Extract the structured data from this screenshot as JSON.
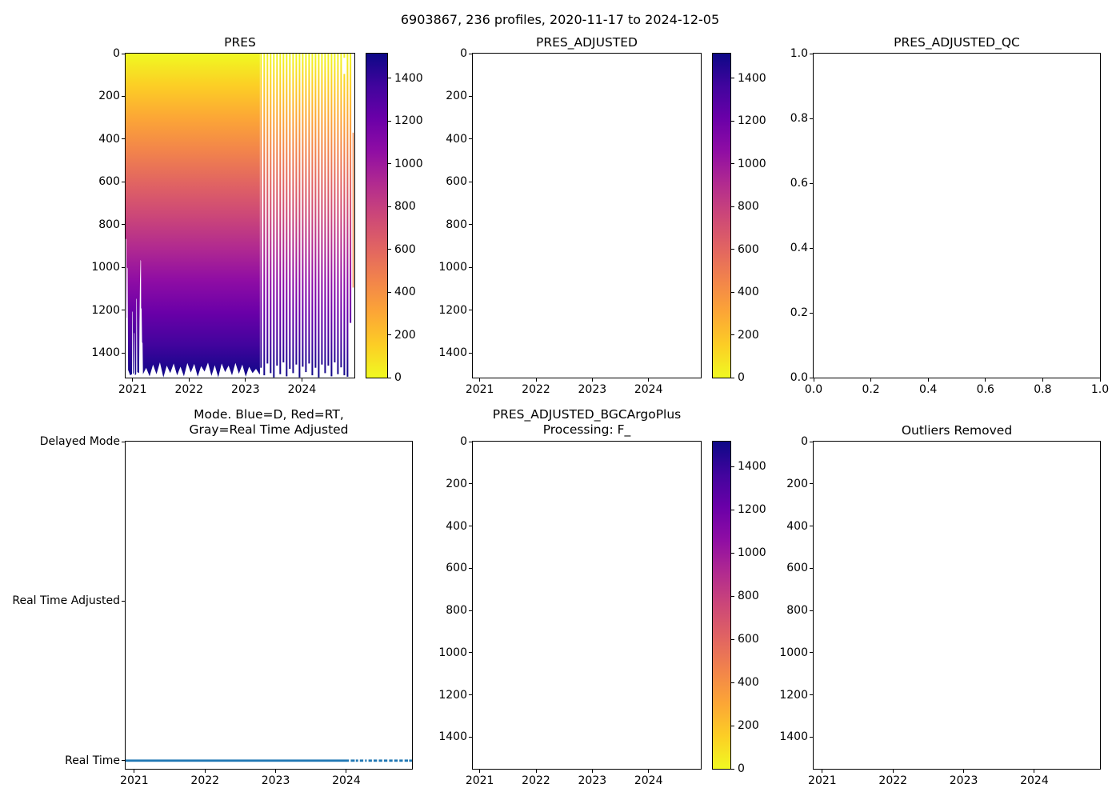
{
  "figure": {
    "title": "6903867, 236 profiles, 2020-11-17 to 2024-12-05",
    "background": "#ffffff"
  },
  "palette": {
    "plasma_r_surface_to_deep": [
      "#f0f921",
      "#fcce25",
      "#fca636",
      "#f2844b",
      "#e16462",
      "#cc4778",
      "#b12a90",
      "#8f0da4",
      "#6a00a8",
      "#41049d",
      "#0d0887"
    ],
    "mode_line": "#1f77b4",
    "axis": "#000000",
    "anomaly_stripe": "#f0894d"
  },
  "chart_data": [
    {
      "id": "pres",
      "type": "scatter",
      "title": "PRES",
      "xlabel": "",
      "ylabel": "",
      "x_range": "2020-11-17 to 2024-12-05",
      "xticks": [
        "2021",
        "2022",
        "2023",
        "2024"
      ],
      "yticks": [
        "0",
        "200",
        "400",
        "600",
        "800",
        "1000",
        "1200",
        "1400"
      ],
      "ylim": [
        1516,
        0
      ],
      "y_inverted": true,
      "colorbar": {
        "cmap": "plasma_r",
        "vmin": 0,
        "vmax": 1516,
        "ticks": [
          "0",
          "200",
          "400",
          "600",
          "800",
          "1000",
          "1200",
          "1400"
        ]
      },
      "note": "dense profiles form solid depth-colored fill until ~2023-04, individual vertical profile stripes afterwards",
      "solid_end_frac": 0.587,
      "solid_bottom": [
        [
          0.0,
          870
        ],
        [
          0.003,
          865
        ],
        [
          0.004,
          1240
        ],
        [
          0.005,
          1235
        ],
        [
          0.006,
          1000
        ],
        [
          0.009,
          1005
        ],
        [
          0.011,
          1480
        ],
        [
          0.02,
          1505
        ],
        [
          0.028,
          1500
        ],
        [
          0.029,
          1205
        ],
        [
          0.031,
          1210
        ],
        [
          0.032,
          1500
        ],
        [
          0.036,
          1495
        ],
        [
          0.037,
          1305
        ],
        [
          0.039,
          1310
        ],
        [
          0.041,
          1505
        ],
        [
          0.046,
          1500
        ],
        [
          0.047,
          1145
        ],
        [
          0.049,
          1150
        ],
        [
          0.051,
          1490
        ],
        [
          0.059,
          1495
        ],
        [
          0.061,
          1255
        ],
        [
          0.063,
          1060
        ],
        [
          0.065,
          965
        ],
        [
          0.067,
          970
        ],
        [
          0.068,
          1190
        ],
        [
          0.07,
          1195
        ],
        [
          0.072,
          1350
        ],
        [
          0.074,
          1355
        ],
        [
          0.076,
          1500
        ],
        [
          0.09,
          1470
        ],
        [
          0.105,
          1510
        ],
        [
          0.12,
          1455
        ],
        [
          0.135,
          1500
        ],
        [
          0.15,
          1445
        ],
        [
          0.165,
          1515
        ],
        [
          0.18,
          1460
        ],
        [
          0.195,
          1495
        ],
        [
          0.21,
          1450
        ],
        [
          0.225,
          1505
        ],
        [
          0.24,
          1465
        ],
        [
          0.255,
          1510
        ],
        [
          0.27,
          1448
        ],
        [
          0.285,
          1492
        ],
        [
          0.3,
          1452
        ],
        [
          0.315,
          1512
        ],
        [
          0.33,
          1462
        ],
        [
          0.345,
          1488
        ],
        [
          0.36,
          1446
        ],
        [
          0.375,
          1508
        ],
        [
          0.39,
          1458
        ],
        [
          0.405,
          1515
        ],
        [
          0.42,
          1450
        ],
        [
          0.435,
          1490
        ],
        [
          0.45,
          1460
        ],
        [
          0.465,
          1505
        ],
        [
          0.48,
          1447
        ],
        [
          0.495,
          1498
        ],
        [
          0.51,
          1455
        ],
        [
          0.525,
          1512
        ],
        [
          0.54,
          1465
        ],
        [
          0.555,
          1495
        ],
        [
          0.57,
          1475
        ],
        [
          0.585,
          1500
        ],
        [
          0.587,
          1500
        ]
      ],
      "stripes": [
        {
          "f": 0.592,
          "d": 1470
        },
        {
          "f": 0.606,
          "d": 1505
        },
        {
          "f": 0.62,
          "d": 1450
        },
        {
          "f": 0.634,
          "d": 1495
        },
        {
          "f": 0.648,
          "d": 1515
        },
        {
          "f": 0.662,
          "d": 1460
        },
        {
          "f": 0.676,
          "d": 1500
        },
        {
          "f": 0.69,
          "d": 1445
        },
        {
          "f": 0.704,
          "d": 1510
        },
        {
          "f": 0.718,
          "d": 1475
        },
        {
          "f": 0.732,
          "d": 1495
        },
        {
          "f": 0.746,
          "d": 1455
        },
        {
          "f": 0.76,
          "d": 1515
        },
        {
          "f": 0.774,
          "d": 1465
        },
        {
          "f": 0.788,
          "d": 1490
        },
        {
          "f": 0.802,
          "d": 1450
        },
        {
          "f": 0.816,
          "d": 1505
        },
        {
          "f": 0.83,
          "d": 1470
        },
        {
          "f": 0.844,
          "d": 1515
        },
        {
          "f": 0.858,
          "d": 1455
        },
        {
          "f": 0.872,
          "d": 1495
        },
        {
          "f": 0.886,
          "d": 1460
        },
        {
          "f": 0.9,
          "d": 1510
        },
        {
          "f": 0.914,
          "d": 1445
        },
        {
          "f": 0.928,
          "d": 1500
        },
        {
          "f": 0.942,
          "d": 1468
        },
        {
          "f": 0.956,
          "d": 1505,
          "y0": 95,
          "top_dash": [
            0,
            20
          ]
        },
        {
          "f": 0.97,
          "d": 1512
        },
        {
          "f": 0.983,
          "d": 1260
        },
        {
          "f": 0.9955,
          "d": 1095,
          "y0": 370,
          "color": "#f0894d",
          "w": 1.5
        }
      ]
    },
    {
      "id": "pres_adjusted",
      "type": "scatter",
      "title": "PRES_ADJUSTED",
      "empty": true,
      "xticks": [
        "2021",
        "2022",
        "2023",
        "2024"
      ],
      "yticks": [
        "0",
        "200",
        "400",
        "600",
        "800",
        "1000",
        "1200",
        "1400"
      ],
      "ylim": [
        1516,
        0
      ],
      "y_inverted": true,
      "colorbar": {
        "cmap": "plasma_r",
        "vmin": 0,
        "vmax": 1516,
        "ticks": [
          "0",
          "200",
          "400",
          "600",
          "800",
          "1000",
          "1200",
          "1400"
        ]
      }
    },
    {
      "id": "pres_adjusted_qc",
      "type": "scatter",
      "title": "PRES_ADJUSTED_QC",
      "empty": true,
      "xticks": [
        "0.0",
        "0.2",
        "0.4",
        "0.6",
        "0.8",
        "1.0"
      ],
      "yticks": [
        "0.0",
        "0.2",
        "0.4",
        "0.6",
        "0.8",
        "1.0"
      ],
      "ylim": [
        0.0,
        1.0
      ]
    },
    {
      "id": "mode",
      "type": "line",
      "title_lines": [
        "Mode. Blue=D, Red=RT,",
        "Gray=Real Time Adjusted"
      ],
      "xticks": [
        "2021",
        "2022",
        "2023",
        "2024"
      ],
      "yticks": [
        "Delayed Mode",
        "Real Time Adjusted",
        "Real Time"
      ],
      "line_value": "Real Time",
      "line_color": "#1f77b4",
      "segments": [
        [
          0.0,
          0.78
        ],
        [
          0.786,
          0.8
        ],
        [
          0.804,
          0.812
        ],
        [
          0.818,
          0.83
        ],
        [
          0.836,
          0.842
        ],
        [
          0.848,
          0.86
        ],
        [
          0.866,
          0.878
        ],
        [
          0.884,
          0.896
        ],
        [
          0.902,
          0.914
        ],
        [
          0.92,
          0.932
        ],
        [
          0.938,
          0.95
        ],
        [
          0.956,
          0.968
        ],
        [
          0.974,
          0.986
        ],
        [
          0.99,
          1.0
        ]
      ]
    },
    {
      "id": "bgc",
      "type": "scatter",
      "title_lines": [
        "PRES_ADJUSTED_BGCArgoPlus",
        "Processing: F_"
      ],
      "empty": true,
      "xticks": [
        "2021",
        "2022",
        "2023",
        "2024"
      ],
      "yticks": [
        "0",
        "200",
        "400",
        "600",
        "800",
        "1000",
        "1200",
        "1400"
      ],
      "ylim": [
        1550,
        0
      ],
      "y_inverted": true,
      "colorbar": {
        "cmap": "plasma_r",
        "vmin": 0,
        "vmax": 1516,
        "ticks": [
          "0",
          "200",
          "400",
          "600",
          "800",
          "1000",
          "1200",
          "1400"
        ]
      }
    },
    {
      "id": "outliers",
      "type": "scatter",
      "title": "Outliers Removed",
      "empty": true,
      "xticks": [
        "2021",
        "2022",
        "2023",
        "2024"
      ],
      "yticks": [
        "0",
        "200",
        "400",
        "600",
        "800",
        "1000",
        "1200",
        "1400"
      ],
      "ylim": [
        1550,
        0
      ],
      "y_inverted": true
    }
  ]
}
